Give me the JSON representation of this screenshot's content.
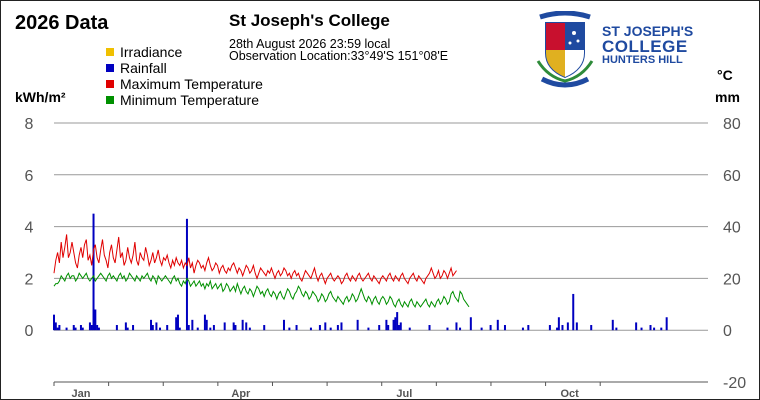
{
  "header": {
    "year_title": "2026 Data",
    "station_name": "St Joseph's College",
    "observation_time": "28th August 2026  23:59 local",
    "observation_location": "Observation Location:33°49'S 151°08'E"
  },
  "logo": {
    "line1": "ST JOSEPH'S",
    "line2": "COLLEGE",
    "line3": "HUNTERS HILL",
    "colors": {
      "blue": "#1f4aa0",
      "red": "#c8102e",
      "gold": "#e0b020",
      "green": "#2e8b3a"
    }
  },
  "units": {
    "left": "kWh/m²",
    "temperature": "°C",
    "rainfall": "mm"
  },
  "colors": {
    "irradiance": "#f0c000",
    "rainfall": "#0000c0",
    "max_temp": "#e00000",
    "min_temp": "#009000",
    "grid": "#999999",
    "axis_text": "#555555"
  },
  "chart_data": {
    "type": "line",
    "title": "2026 Data",
    "legend": [
      "Irradiance",
      "Rainfall",
      "Maximum Temperature",
      "Minimum Temperature"
    ],
    "legend_placement": "top-left",
    "grid": true,
    "left_axis": {
      "label": "kWh/m²",
      "range": [
        0,
        8
      ],
      "ticks": [
        "8",
        "6",
        "4",
        "2",
        "0"
      ]
    },
    "right_axis": {
      "label_temp": "°C",
      "label_rain": "mm",
      "range": [
        -20,
        80
      ],
      "ticks": [
        "80",
        "60",
        "40",
        "20",
        "0",
        "-20"
      ]
    },
    "x_axis": {
      "range_days": [
        1,
        365
      ],
      "months": [
        {
          "label": "Jan",
          "day": 16
        },
        {
          "label": "Apr",
          "day": 105
        },
        {
          "label": "Jul",
          "day": 196
        },
        {
          "label": "Oct",
          "day": 288
        }
      ]
    },
    "series": [
      {
        "name": "Maximum Temperature",
        "axis": "right",
        "values": [
          22,
          27,
          30,
          26,
          34,
          28,
          32,
          37,
          28,
          30,
          34,
          30,
          26,
          24,
          29,
          32,
          28,
          33,
          35,
          27,
          29,
          25,
          31,
          33,
          28,
          26,
          31,
          35,
          29,
          27,
          24,
          30,
          33,
          28,
          26,
          31,
          36,
          28,
          30,
          25,
          27,
          32,
          28,
          26,
          29,
          34,
          27,
          25,
          30,
          28,
          27,
          32,
          29,
          25,
          27,
          30,
          26,
          28,
          31,
          27,
          25,
          28,
          27,
          29,
          26,
          24,
          27,
          25,
          28,
          26,
          25,
          27,
          24,
          26,
          25,
          28,
          24,
          26,
          22,
          25,
          27,
          26,
          24,
          25,
          23,
          26,
          28,
          25,
          23,
          24,
          26,
          25,
          22,
          24,
          25,
          23,
          22,
          24,
          23,
          25,
          26,
          24,
          22,
          24,
          23,
          21,
          23,
          25,
          24,
          22,
          23,
          25,
          22,
          20,
          22,
          24,
          23,
          22,
          21,
          23,
          22,
          24,
          22,
          20,
          22,
          23,
          21,
          22,
          24,
          23,
          21,
          22,
          20,
          22,
          23,
          21,
          22,
          20,
          19,
          21,
          23,
          22,
          21,
          20,
          22,
          24,
          21,
          19,
          21,
          22,
          20,
          18,
          20,
          21,
          22,
          20,
          19,
          20,
          21,
          20,
          18,
          19,
          21,
          22,
          20,
          19,
          21,
          20,
          19,
          21,
          22,
          20,
          19,
          20,
          21,
          22,
          20,
          19,
          21,
          20,
          19,
          18,
          20,
          21,
          20,
          19,
          21,
          22,
          20,
          19,
          21,
          20,
          19,
          21,
          22,
          20,
          19,
          18,
          20,
          21,
          22,
          20,
          19,
          21,
          20,
          19,
          18,
          20,
          21,
          22,
          24,
          22,
          20,
          21,
          23,
          20,
          21,
          23,
          22,
          20,
          22,
          24,
          21,
          22,
          23
        ]
      },
      {
        "name": "Minimum Temperature",
        "axis": "right",
        "values": [
          17,
          18,
          18,
          19,
          21,
          20,
          19,
          21,
          22,
          20,
          21,
          21,
          19,
          20,
          22,
          21,
          20,
          21,
          22,
          20,
          19,
          20,
          21,
          19,
          20,
          21,
          22,
          21,
          20,
          19,
          21,
          22,
          20,
          21,
          20,
          19,
          21,
          22,
          20,
          21,
          19,
          20,
          22,
          21,
          20,
          19,
          21,
          20,
          19,
          21,
          20,
          21,
          22,
          20,
          19,
          21,
          20,
          18,
          21,
          20,
          19,
          20,
          21,
          20,
          19,
          18,
          20,
          21,
          19,
          20,
          18,
          17,
          19,
          18,
          20,
          19,
          17,
          18,
          19,
          17,
          18,
          19,
          17,
          18,
          16,
          18,
          17,
          19,
          16,
          17,
          18,
          16,
          17,
          18,
          15,
          16,
          18,
          17,
          15,
          16,
          17,
          15,
          18,
          16,
          14,
          16,
          17,
          15,
          14,
          16,
          15,
          13,
          15,
          17,
          16,
          14,
          15,
          13,
          15,
          16,
          14,
          13,
          15,
          14,
          12,
          14,
          15,
          13,
          12,
          14,
          16,
          15,
          13,
          12,
          14,
          15,
          17,
          16,
          14,
          13,
          15,
          14,
          12,
          13,
          15,
          14,
          13,
          11,
          12,
          14,
          13,
          11,
          12,
          14,
          15,
          13,
          12,
          11,
          13,
          12,
          11,
          10,
          12,
          13,
          11,
          12,
          14,
          13,
          11,
          12,
          14,
          16,
          14,
          12,
          11,
          13,
          12,
          10,
          12,
          13,
          11,
          10,
          12,
          13,
          12,
          10,
          11,
          13,
          12,
          10,
          9,
          11,
          12,
          10,
          9,
          11,
          10,
          9,
          11,
          12,
          10,
          9,
          11,
          10,
          9,
          10,
          11,
          12,
          10,
          9,
          11,
          10,
          9,
          11,
          12,
          10,
          11,
          13,
          12,
          10,
          11,
          14,
          15,
          13,
          12,
          11,
          15,
          14,
          12,
          11,
          10,
          9
        ]
      },
      {
        "name": "Rainfall",
        "axis": "right",
        "type": "bar",
        "bars": [
          [
            1,
            6
          ],
          [
            2,
            3
          ],
          [
            3,
            1
          ],
          [
            4,
            2
          ],
          [
            8,
            1
          ],
          [
            12,
            2
          ],
          [
            13,
            1
          ],
          [
            16,
            2
          ],
          [
            17,
            1
          ],
          [
            21,
            3
          ],
          [
            22,
            2
          ],
          [
            23,
            45
          ],
          [
            24,
            8
          ],
          [
            25,
            2
          ],
          [
            26,
            1
          ],
          [
            36,
            2
          ],
          [
            41,
            3
          ],
          [
            42,
            1
          ],
          [
            45,
            2
          ],
          [
            55,
            4
          ],
          [
            56,
            2
          ],
          [
            58,
            3
          ],
          [
            60,
            1
          ],
          [
            64,
            2
          ],
          [
            69,
            5
          ],
          [
            70,
            6
          ],
          [
            71,
            1
          ],
          [
            75,
            43
          ],
          [
            76,
            2
          ],
          [
            78,
            4
          ],
          [
            81,
            1
          ],
          [
            85,
            6
          ],
          [
            86,
            4
          ],
          [
            88,
            1
          ],
          [
            90,
            2
          ],
          [
            96,
            3
          ],
          [
            101,
            3
          ],
          [
            102,
            2
          ],
          [
            106,
            4
          ],
          [
            108,
            3
          ],
          [
            110,
            1
          ],
          [
            118,
            2
          ],
          [
            129,
            4
          ],
          [
            132,
            1
          ],
          [
            136,
            2
          ],
          [
            144,
            1
          ],
          [
            149,
            2
          ],
          [
            152,
            3
          ],
          [
            155,
            1
          ],
          [
            159,
            2
          ],
          [
            161,
            3
          ],
          [
            170,
            4
          ],
          [
            176,
            1
          ],
          [
            182,
            2
          ],
          [
            186,
            4
          ],
          [
            187,
            2
          ],
          [
            190,
            4
          ],
          [
            191,
            5
          ],
          [
            192,
            7
          ],
          [
            193,
            2
          ],
          [
            194,
            3
          ],
          [
            199,
            1
          ],
          [
            210,
            2
          ],
          [
            220,
            1
          ],
          [
            225,
            3
          ],
          [
            227,
            1
          ],
          [
            233,
            5
          ],
          [
            239,
            1
          ],
          [
            244,
            2
          ],
          [
            248,
            4
          ],
          [
            252,
            2
          ],
          [
            262,
            1
          ],
          [
            265,
            2
          ],
          [
            277,
            2
          ],
          [
            281,
            1
          ],
          [
            282,
            5
          ],
          [
            284,
            2
          ],
          [
            287,
            3
          ],
          [
            290,
            14
          ],
          [
            292,
            3
          ],
          [
            300,
            2
          ],
          [
            312,
            4
          ],
          [
            314,
            1
          ],
          [
            325,
            3
          ],
          [
            328,
            1
          ],
          [
            333,
            2
          ],
          [
            335,
            1
          ],
          [
            339,
            1
          ],
          [
            342,
            5
          ]
        ]
      },
      {
        "name": "Irradiance",
        "axis": "left",
        "values": []
      }
    ]
  }
}
